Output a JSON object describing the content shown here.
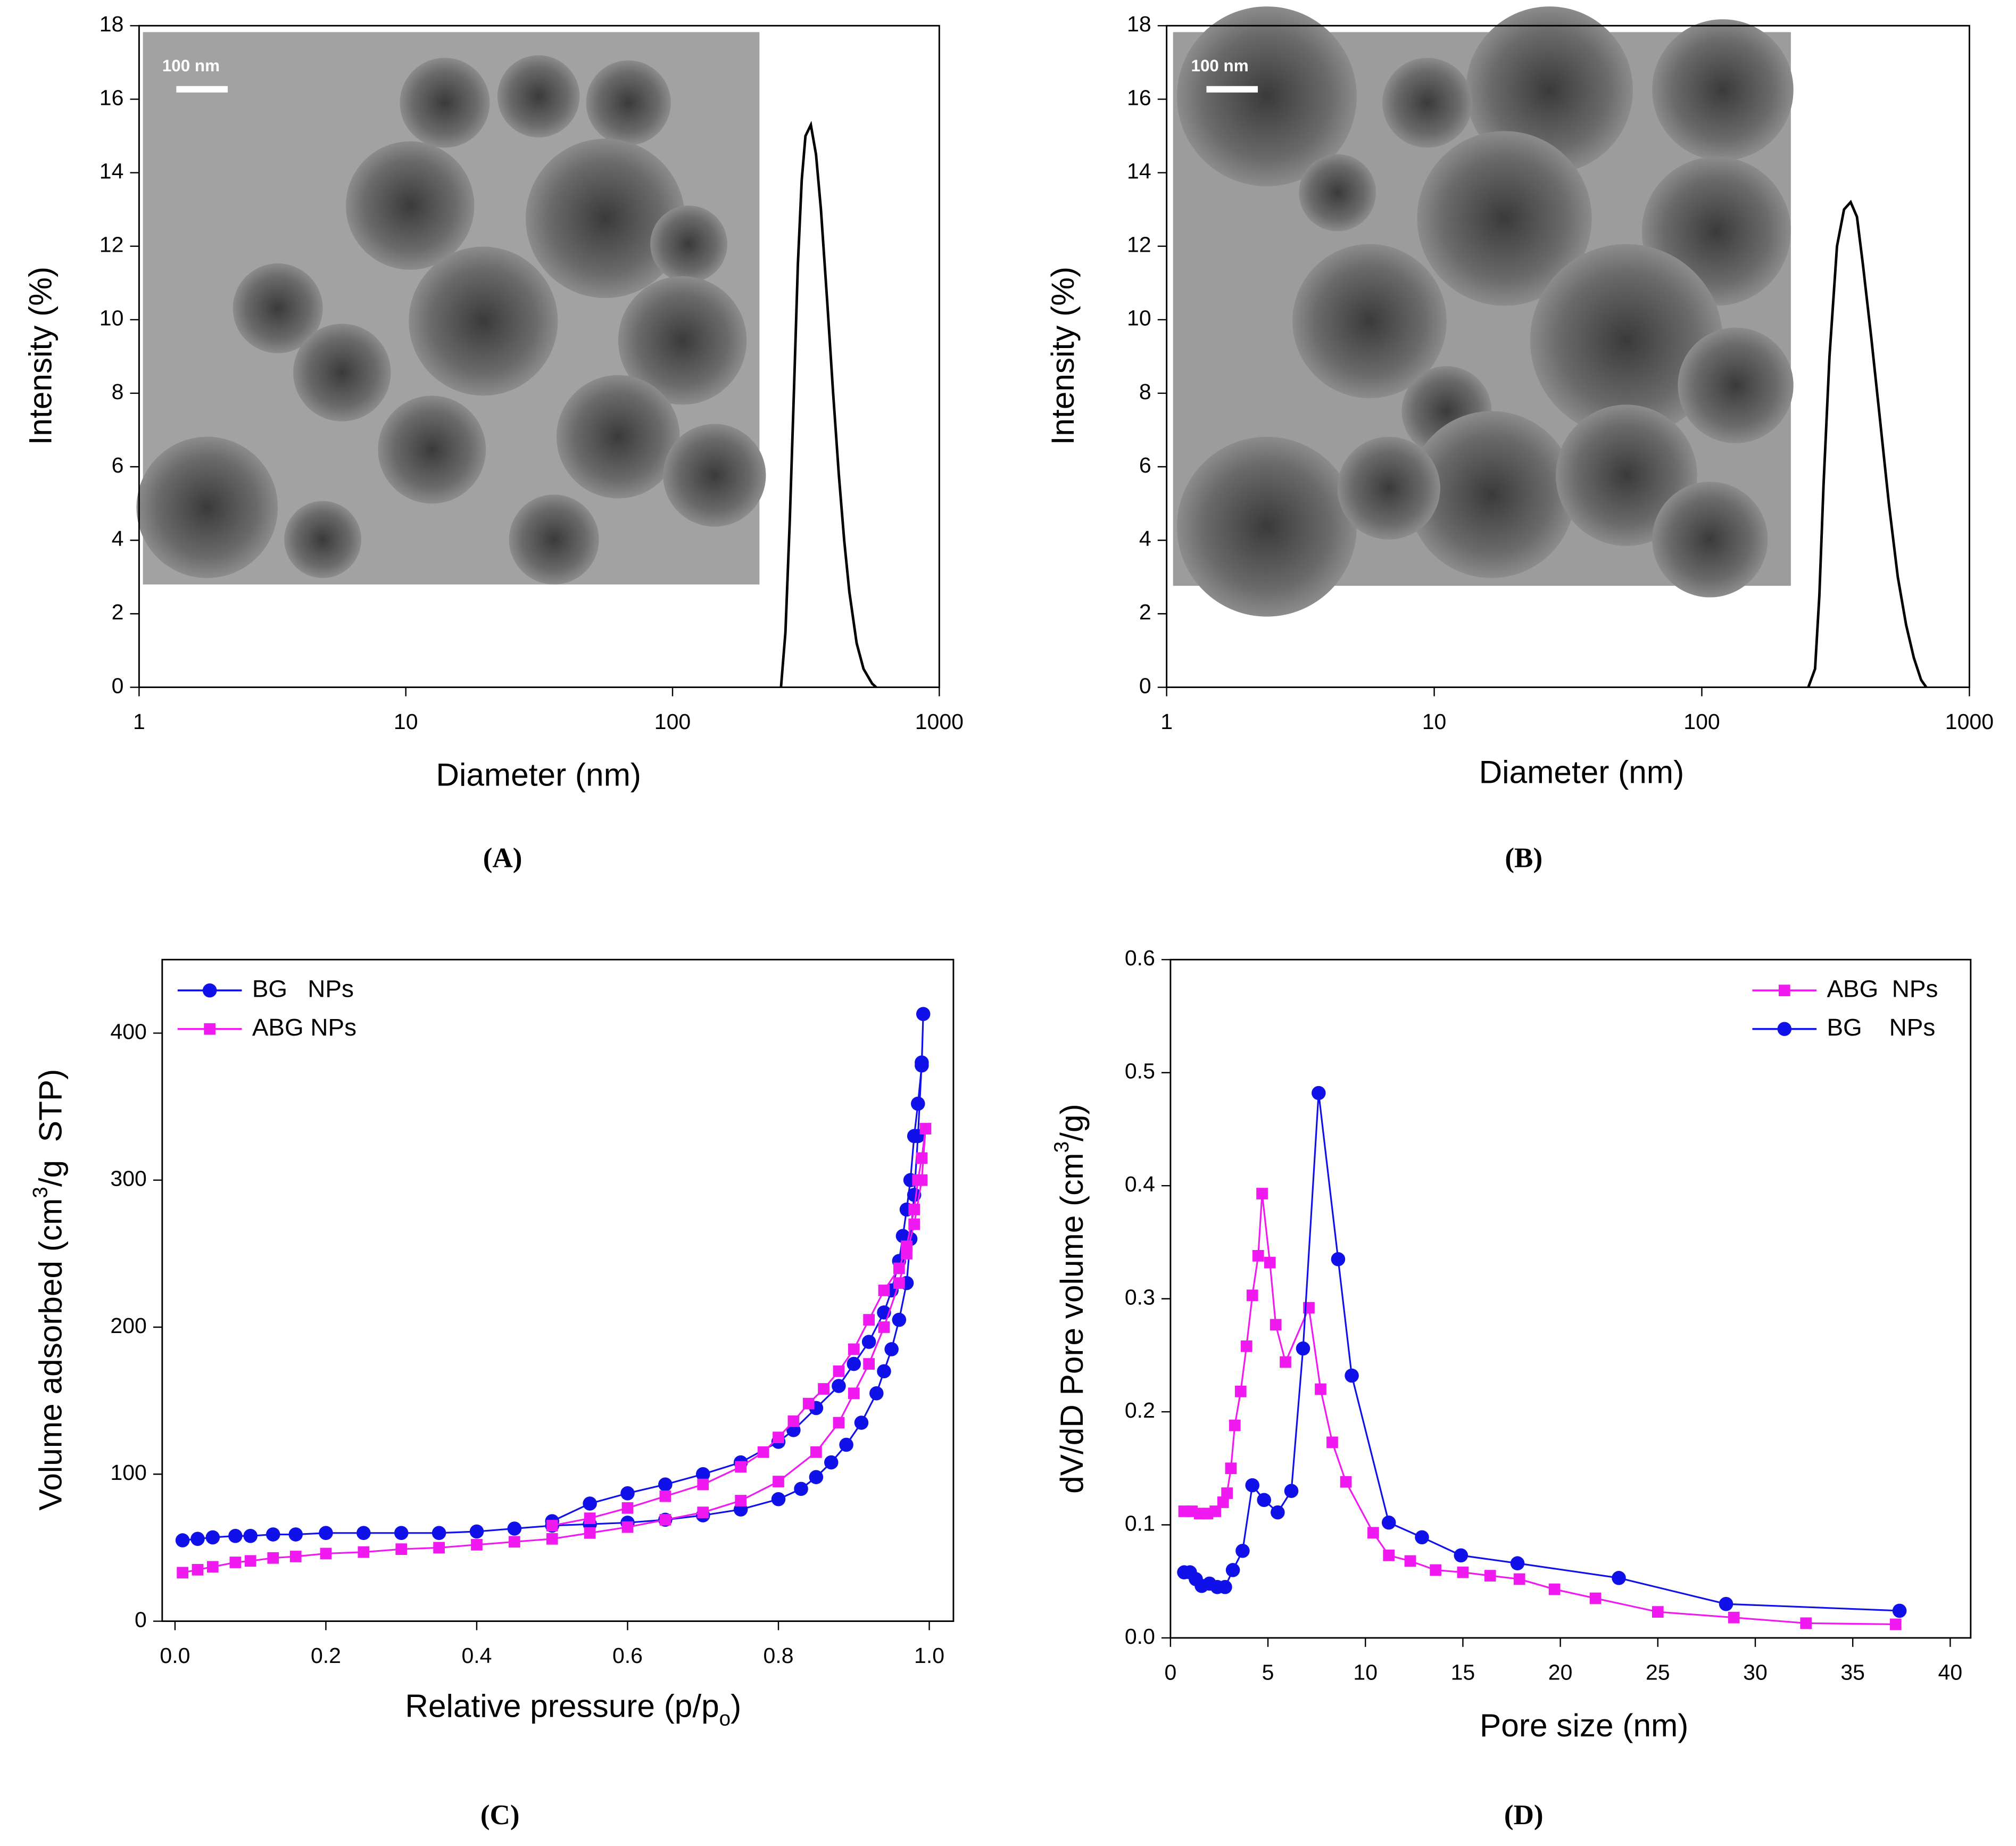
{
  "chart_data": [
    {
      "type": "line",
      "panel_label": "(A)",
      "x_label": "Diameter (nm)",
      "y_label": "Intensity (%)",
      "xscale": "log",
      "xlim": [
        1,
        1000
      ],
      "xticks": [
        1,
        10,
        100,
        1000
      ],
      "ylim": [
        0,
        18
      ],
      "yticks": [
        0,
        2,
        4,
        6,
        8,
        10,
        12,
        14,
        16,
        18
      ],
      "inset_scale_bar": "100 nm",
      "series": [
        {
          "color": "#000000",
          "marker": "none",
          "x": [
            255,
            265,
            275,
            285,
            295,
            305,
            315,
            330,
            345,
            360,
            380,
            400,
            420,
            440,
            460,
            490,
            520,
            560,
            580
          ],
          "values": [
            0,
            1.5,
            4.5,
            8,
            11.5,
            13.8,
            15,
            15.3,
            14.5,
            13,
            10.5,
            8,
            5.8,
            4,
            2.6,
            1.2,
            0.5,
            0.1,
            0
          ]
        }
      ]
    },
    {
      "type": "line",
      "panel_label": "(B)",
      "x_label": "Diameter (nm)",
      "y_label": "Intensity (%)",
      "xscale": "log",
      "xlim": [
        1,
        1000
      ],
      "xticks": [
        1,
        10,
        100,
        1000
      ],
      "ylim": [
        0,
        18
      ],
      "yticks": [
        0,
        2,
        4,
        6,
        8,
        10,
        12,
        14,
        16,
        18
      ],
      "inset_scale_bar": "100 nm",
      "series": [
        {
          "color": "#000000",
          "marker": "none",
          "x": [
            250,
            265,
            275,
            285,
            300,
            320,
            340,
            360,
            380,
            400,
            430,
            460,
            500,
            540,
            580,
            620,
            660,
            690
          ],
          "values": [
            0,
            0.5,
            2.5,
            5.5,
            9,
            12,
            13,
            13.2,
            12.8,
            11.5,
            9.5,
            7.5,
            5,
            3,
            1.7,
            0.8,
            0.2,
            0
          ]
        }
      ]
    },
    {
      "type": "line",
      "panel_label": "(C)",
      "x_label": [
        "Relative pressure (p/p",
        "o",
        ")"
      ],
      "x_label_style": [
        "normal",
        "sub",
        "normal"
      ],
      "y_label": [
        "Volume adsorbed (cm",
        "3",
        "/g  STP)"
      ],
      "y_label_style": [
        "normal",
        "sup",
        "normal"
      ],
      "xlim": [
        -0.017,
        1.032
      ],
      "xticks": [
        {
          "value": 0,
          "label": "0.0"
        },
        0.2,
        0.4,
        0.6,
        0.8,
        {
          "value": 1,
          "label": "1.0"
        }
      ],
      "ylim": [
        0,
        450
      ],
      "yticks": [
        0,
        100,
        200,
        300,
        400
      ],
      "legend": "upper left",
      "series": [
        {
          "name": "BG   NPs",
          "color": "#1010e8",
          "marker": "circle",
          "x": [
            0.01,
            0.03,
            0.05,
            0.08,
            0.1,
            0.13,
            0.16,
            0.2,
            0.25,
            0.3,
            0.35,
            0.4,
            0.45,
            0.5,
            0.55,
            0.6,
            0.65,
            0.7,
            0.75,
            0.8,
            0.83,
            0.85,
            0.87,
            0.89,
            0.91,
            0.93,
            0.94,
            0.95,
            0.96,
            0.97,
            0.975,
            0.98,
            0.985,
            0.99,
            0.992,
            0.99,
            0.985,
            0.98,
            0.975,
            0.97,
            0.965,
            0.96,
            0.95,
            0.94,
            0.92,
            0.9,
            0.88,
            0.85,
            0.82,
            0.8,
            0.75,
            0.7,
            0.65,
            0.6,
            0.55,
            0.5
          ],
          "values": [
            55,
            56,
            57,
            58,
            58,
            59,
            59,
            60,
            60,
            60,
            60,
            61,
            63,
            65,
            66,
            67,
            69,
            72,
            76,
            83,
            90,
            98,
            108,
            120,
            135,
            155,
            170,
            185,
            205,
            230,
            260,
            290,
            330,
            380,
            413,
            378,
            352,
            330,
            300,
            280,
            262,
            245,
            225,
            210,
            190,
            175,
            160,
            145,
            130,
            122,
            108,
            100,
            93,
            87,
            80,
            68
          ]
        },
        {
          "name": "ABG NPs",
          "color": "#f019f0",
          "marker": "square",
          "x": [
            0.01,
            0.03,
            0.05,
            0.08,
            0.1,
            0.13,
            0.16,
            0.2,
            0.25,
            0.3,
            0.35,
            0.4,
            0.45,
            0.5,
            0.55,
            0.6,
            0.65,
            0.7,
            0.75,
            0.8,
            0.85,
            0.88,
            0.9,
            0.92,
            0.94,
            0.96,
            0.97,
            0.98,
            0.99,
            0.995,
            0.99,
            0.985,
            0.98,
            0.97,
            0.96,
            0.94,
            0.92,
            0.9,
            0.88,
            0.86,
            0.84,
            0.82,
            0.8,
            0.78,
            0.75,
            0.7,
            0.65,
            0.6,
            0.55,
            0.5
          ],
          "values": [
            33,
            35,
            37,
            40,
            41,
            43,
            44,
            46,
            47,
            49,
            50,
            52,
            54,
            56,
            60,
            64,
            69,
            74,
            82,
            95,
            115,
            135,
            155,
            175,
            200,
            230,
            250,
            270,
            300,
            335,
            315,
            300,
            280,
            255,
            240,
            225,
            205,
            185,
            170,
            158,
            148,
            136,
            125,
            115,
            105,
            93,
            85,
            77,
            70,
            65
          ]
        }
      ]
    },
    {
      "type": "line",
      "panel_label": "(D)",
      "x_label": "Pore size (nm)",
      "y_label": [
        "dV/dD Pore volume (cm",
        "3",
        "/g)"
      ],
      "y_label_style": [
        "normal",
        "sup",
        "normal"
      ],
      "xlim": [
        0,
        41.05
      ],
      "xticks": [
        0,
        5,
        10,
        15,
        20,
        25,
        30,
        35,
        40
      ],
      "ylim": [
        0,
        0.6
      ],
      "yticks": [
        {
          "value": 0,
          "label": "0.0"
        },
        0.1,
        0.2,
        0.3,
        0.4,
        0.5,
        0.6
      ],
      "legend": "upper right",
      "series": [
        {
          "name": "ABG  NPs",
          "color": "#f019f0",
          "marker": "square",
          "x": [
            0.7,
            1.1,
            1.5,
            1.9,
            2.3,
            2.7,
            2.9,
            3.1,
            3.3,
            3.6,
            3.9,
            4.2,
            4.5,
            4.7,
            5.1,
            5.4,
            5.9,
            7.1,
            7.7,
            8.3,
            9.0,
            10.4,
            11.2,
            12.3,
            13.6,
            15.0,
            16.4,
            17.9,
            19.7,
            21.8,
            25.0,
            28.9,
            32.6,
            37.2
          ],
          "values": [
            0.112,
            0.112,
            0.11,
            0.11,
            0.112,
            0.12,
            0.128,
            0.15,
            0.188,
            0.218,
            0.258,
            0.303,
            0.338,
            0.393,
            0.332,
            0.277,
            0.244,
            0.292,
            0.22,
            0.173,
            0.138,
            0.093,
            0.073,
            0.068,
            0.06,
            0.058,
            0.055,
            0.052,
            0.043,
            0.035,
            0.023,
            0.018,
            0.013,
            0.012
          ]
        },
        {
          "name": "BG    NPs",
          "color": "#1010e8",
          "marker": "circle",
          "x": [
            0.7,
            1.0,
            1.3,
            1.6,
            2.0,
            2.4,
            2.8,
            3.2,
            3.7,
            4.2,
            4.8,
            5.5,
            6.2,
            6.8,
            7.6,
            8.6,
            9.3,
            11.2,
            12.9,
            14.9,
            17.8,
            23.0,
            28.5,
            37.4
          ],
          "values": [
            0.058,
            0.058,
            0.052,
            0.046,
            0.048,
            0.045,
            0.045,
            0.06,
            0.077,
            0.135,
            0.122,
            0.111,
            0.13,
            0.256,
            0.482,
            0.335,
            0.232,
            0.102,
            0.089,
            0.073,
            0.066,
            0.053,
            0.03,
            0.024
          ]
        }
      ]
    }
  ]
}
